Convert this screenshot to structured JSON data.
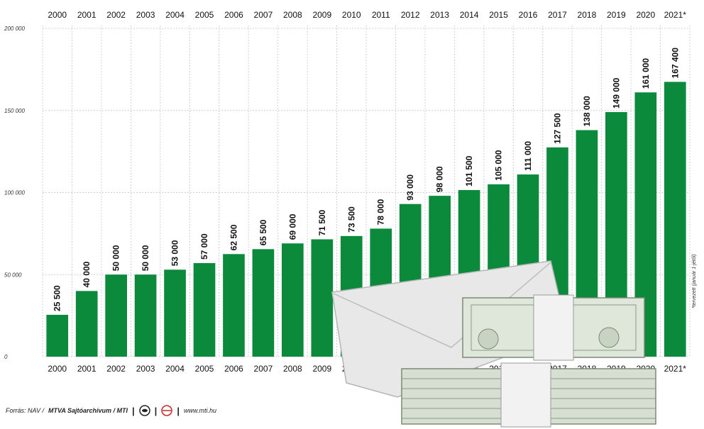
{
  "chart_data": {
    "type": "bar",
    "categories": [
      "2000",
      "2001",
      "2002",
      "2003",
      "2004",
      "2005",
      "2006",
      "2007",
      "2008",
      "2009",
      "2010",
      "2011",
      "2012",
      "2013",
      "2014",
      "2015",
      "2016",
      "2017",
      "2018",
      "2019",
      "2020",
      "2021*"
    ],
    "values": [
      25500,
      40000,
      50000,
      50000,
      53000,
      57000,
      62500,
      65500,
      69000,
      71500,
      73500,
      78000,
      93000,
      98000,
      101500,
      105000,
      111000,
      127500,
      138000,
      149000,
      161000,
      167400
    ],
    "value_labels": [
      "25 500",
      "40 000",
      "50 000",
      "50 000",
      "53 000",
      "57 000",
      "62 500",
      "65 500",
      "69 000",
      "71 500",
      "73 500",
      "78 000",
      "93 000",
      "98 000",
      "101 500",
      "105 000",
      "111 000",
      "127 500",
      "138 000",
      "149 000",
      "161 000",
      "167 400"
    ],
    "ylim": [
      0,
      200000
    ],
    "yticks": [
      0,
      50000,
      100000,
      150000,
      200000
    ],
    "ytick_labels": [
      "0",
      "50 000",
      "100 000",
      "150 000",
      "200 000"
    ],
    "grid": true,
    "bar_color": "#0a8a3a",
    "grid_color": "#d0d0d0"
  },
  "footer": {
    "source_prefix": "Forrás: NAV /",
    "source_bold": "MTVA Sajtóarchívum / MTI",
    "separator": "|",
    "url": "www.mti.hu"
  },
  "note": "*tervezett (január 1-jétől)"
}
